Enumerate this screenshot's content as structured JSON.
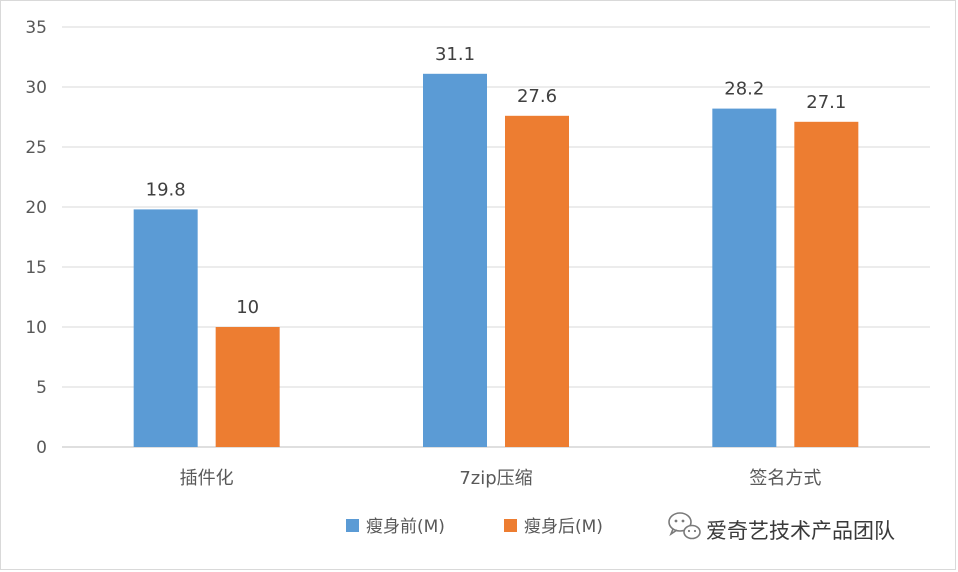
{
  "chart_data": {
    "type": "bar",
    "categories": [
      "插件化",
      "7zip压缩",
      "签名方式"
    ],
    "series": [
      {
        "name": "瘦身前(M)",
        "values": [
          19.8,
          31.1,
          28.2
        ],
        "color": "#5b9bd5"
      },
      {
        "name": "瘦身后(M)",
        "values": [
          10,
          27.6,
          27.1
        ],
        "color": "#ed7d31"
      }
    ],
    "title": "",
    "xlabel": "",
    "ylabel": "",
    "ylim": [
      0,
      35
    ],
    "yticks": [
      0,
      5,
      10,
      15,
      20,
      25,
      30,
      35
    ],
    "grid": true,
    "legend_position": "bottom-center"
  },
  "watermark": {
    "text": "爱奇艺技术产品团队",
    "icon": "wechat-icon"
  }
}
